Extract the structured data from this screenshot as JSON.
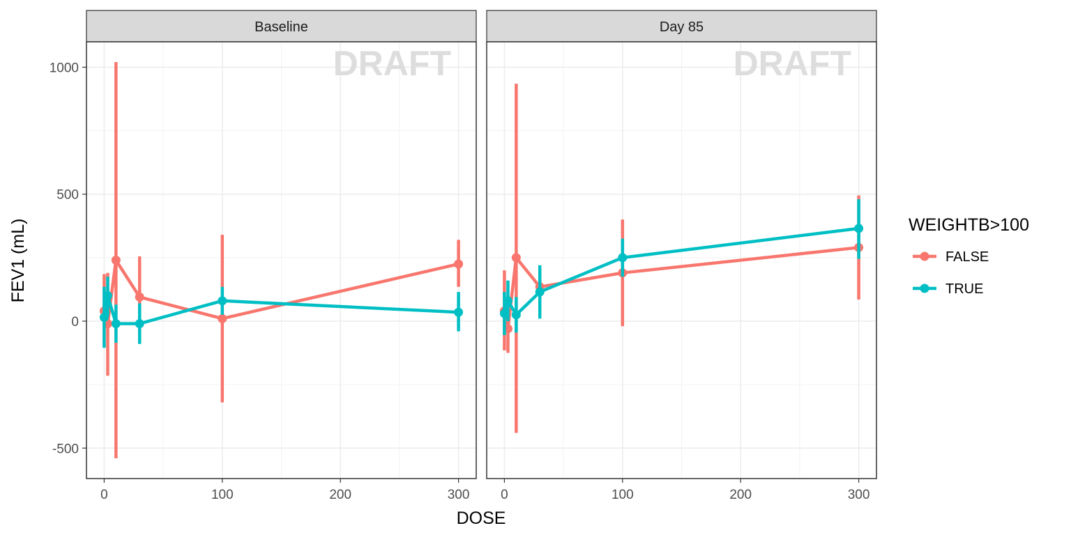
{
  "chart_data": {
    "type": "line",
    "facets": [
      "Baseline",
      "Day 85"
    ],
    "xlabel": "DOSE",
    "ylabel": "FEV1 (mL)",
    "xlim": [
      -15,
      315
    ],
    "ylim": [
      -620,
      1100
    ],
    "xticks": [
      0,
      100,
      200,
      300
    ],
    "yticks": [
      -500,
      0,
      500,
      1000
    ],
    "grid": true,
    "watermark": "DRAFT",
    "legend": {
      "title": "WEIGHTB>100",
      "position": "right",
      "entries": [
        "FALSE",
        "TRUE"
      ]
    },
    "colors": {
      "FALSE": "#F8766D",
      "TRUE": "#00BFC4"
    },
    "series": [
      {
        "facet": "Baseline",
        "group": "FALSE",
        "points": [
          {
            "x": 0,
            "y": 40,
            "lo": -95,
            "hi": 185
          },
          {
            "x": 3,
            "y": -10,
            "lo": -215,
            "hi": 190
          },
          {
            "x": 10,
            "y": 240,
            "lo": -540,
            "hi": 1020
          },
          {
            "x": 30,
            "y": 95,
            "lo": -60,
            "hi": 255
          },
          {
            "x": 100,
            "y": 10,
            "lo": -320,
            "hi": 340
          },
          {
            "x": 300,
            "y": 225,
            "lo": 135,
            "hi": 320
          }
        ]
      },
      {
        "facet": "Baseline",
        "group": "TRUE",
        "points": [
          {
            "x": 0,
            "y": 15,
            "lo": -105,
            "hi": 135
          },
          {
            "x": 3,
            "y": 100,
            "lo": 20,
            "hi": 175
          },
          {
            "x": 10,
            "y": -10,
            "lo": -85,
            "hi": 65
          },
          {
            "x": 30,
            "y": -10,
            "lo": -90,
            "hi": 70
          },
          {
            "x": 100,
            "y": 80,
            "lo": 25,
            "hi": 135
          },
          {
            "x": 300,
            "y": 35,
            "lo": -40,
            "hi": 115
          }
        ]
      },
      {
        "facet": "Day 85",
        "group": "FALSE",
        "points": [
          {
            "x": 0,
            "y": 40,
            "lo": -115,
            "hi": 200
          },
          {
            "x": 3,
            "y": -30,
            "lo": -125,
            "hi": 65
          },
          {
            "x": 10,
            "y": 250,
            "lo": -440,
            "hi": 935
          },
          {
            "x": 30,
            "y": 135,
            "lo": 60,
            "hi": 210
          },
          {
            "x": 100,
            "y": 190,
            "lo": -20,
            "hi": 400
          },
          {
            "x": 300,
            "y": 290,
            "lo": 85,
            "hi": 495
          }
        ]
      },
      {
        "facet": "Day 85",
        "group": "TRUE",
        "points": [
          {
            "x": 0,
            "y": 30,
            "lo": -55,
            "hi": 115
          },
          {
            "x": 3,
            "y": 80,
            "lo": 0,
            "hi": 160
          },
          {
            "x": 10,
            "y": 25,
            "lo": -45,
            "hi": 95
          },
          {
            "x": 30,
            "y": 115,
            "lo": 10,
            "hi": 220
          },
          {
            "x": 100,
            "y": 250,
            "lo": 175,
            "hi": 325
          },
          {
            "x": 300,
            "y": 365,
            "lo": 245,
            "hi": 480
          }
        ]
      }
    ]
  }
}
